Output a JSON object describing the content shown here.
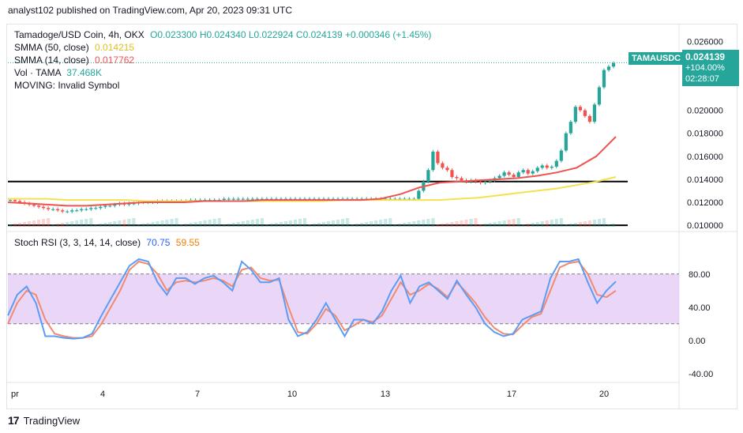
{
  "header": {
    "published": "analyst102 published on TradingView.com, Apr 20, 2023 09:31 UTC"
  },
  "legend": {
    "title": "Tamadoge/USD Coin, 4h, OKX",
    "ohlc": "O0.023300  H0.024340  L0.022924  C0.024139  +0.000346 (+1.45%)",
    "sma50_label": "SMMA (50, close)",
    "sma50_value": "0.014215",
    "sma14_label": "SMMA (14, close)",
    "sma14_value": "0.017762",
    "vol_label": "Vol · TAMA",
    "vol_value": "37.468K",
    "moving": "MOVING: Invalid Symbol",
    "stoch_label": "Stoch RSI (3, 3, 14, 14, close)",
    "stoch_k": "70.75",
    "stoch_d": "59.55"
  },
  "price_tag": {
    "symbol": "TAMAUSDC",
    "price": "0.024139",
    "change": "+104.00%",
    "timer": "02:28:07"
  },
  "footer": {
    "brand": "TradingView"
  },
  "colors": {
    "up": "#26a69a",
    "down": "#ef5350",
    "sma50": "#f5e050",
    "sma14": "#ef5350",
    "stoch_k": "#5b9cf6",
    "stoch_d": "#f08a70",
    "band": "#e1c6f5"
  },
  "chart_data": [
    {
      "type": "candlestick",
      "y_ticks": [
        "0.026000",
        "0.020000",
        "0.018000",
        "0.016000",
        "0.014000",
        "0.012000",
        "0.010000"
      ],
      "ylim": [
        0.0098,
        0.0265
      ],
      "x_ticks": [
        "pr",
        "4",
        "7",
        "10",
        "13",
        "17",
        "20"
      ],
      "support_lines": [
        0.0138,
        0.01
      ],
      "candles_close": [
        0.0122,
        0.0121,
        0.012,
        0.0119,
        0.0118,
        0.0117,
        0.0116,
        0.0115,
        0.0114,
        0.0114,
        0.0113,
        0.0112,
        0.0112,
        0.0113,
        0.0113,
        0.0114,
        0.0114,
        0.0115,
        0.0115,
        0.0116,
        0.0117,
        0.0117,
        0.0118,
        0.0119,
        0.0118,
        0.0119,
        0.0119,
        0.012,
        0.012,
        0.012,
        0.012,
        0.0121,
        0.0121,
        0.0121,
        0.0121,
        0.0121,
        0.0121,
        0.0121,
        0.0122,
        0.0122,
        0.0122,
        0.0122,
        0.0122,
        0.0122,
        0.0122,
        0.0123,
        0.0123,
        0.0123,
        0.0123,
        0.0123,
        0.0123,
        0.0123,
        0.0123,
        0.0123,
        0.0123,
        0.0123,
        0.0123,
        0.0123,
        0.0123,
        0.0123,
        0.0123,
        0.0123,
        0.0123,
        0.0123,
        0.0123,
        0.0123,
        0.0123,
        0.0123,
        0.0123,
        0.0123,
        0.0123,
        0.0123,
        0.0123,
        0.0123,
        0.0123,
        0.0123,
        0.0123,
        0.0123,
        0.0123,
        0.0123,
        0.0123,
        0.0123,
        0.0123,
        0.0123,
        0.0123,
        0.0123,
        0.013,
        0.0138,
        0.0148,
        0.0164,
        0.0154,
        0.015,
        0.0148,
        0.0142,
        0.0141,
        0.0139,
        0.0138,
        0.0139,
        0.0138,
        0.0137,
        0.0138,
        0.0139,
        0.0141,
        0.0143,
        0.0146,
        0.0144,
        0.0142,
        0.0146,
        0.0148,
        0.0145,
        0.0147,
        0.015,
        0.0152,
        0.015,
        0.0151,
        0.0156,
        0.0165,
        0.018,
        0.019,
        0.0203,
        0.02,
        0.0195,
        0.019,
        0.0205,
        0.022,
        0.0235,
        0.0238,
        0.0241
      ],
      "sma50": [
        0.0123,
        0.0123,
        0.0123,
        0.0122,
        0.0122,
        0.0122,
        0.0122,
        0.0121,
        0.0121,
        0.0121,
        0.0121,
        0.0121,
        0.0121,
        0.0121,
        0.0121,
        0.0121,
        0.0121,
        0.0122,
        0.0122,
        0.0122,
        0.0122,
        0.0122,
        0.0122,
        0.0123,
        0.0124,
        0.0126,
        0.0128,
        0.013,
        0.0132,
        0.0135,
        0.0138,
        0.0142
      ],
      "sma14": [
        0.012,
        0.0119,
        0.0118,
        0.0117,
        0.0117,
        0.0118,
        0.0119,
        0.012,
        0.012,
        0.012,
        0.0121,
        0.0121,
        0.0121,
        0.0122,
        0.0122,
        0.0122,
        0.0122,
        0.0122,
        0.0122,
        0.0123,
        0.0127,
        0.0133,
        0.0137,
        0.0138,
        0.0139,
        0.014,
        0.0141,
        0.0143,
        0.0146,
        0.015,
        0.016,
        0.0177
      ]
    },
    {
      "type": "line",
      "name": "Stoch RSI",
      "y_ticks": [
        "80.00",
        "40.00",
        "0.00",
        "-40.00"
      ],
      "ylim": [
        -45,
        115
      ],
      "band": [
        20,
        80
      ],
      "k": [
        30,
        55,
        65,
        45,
        5,
        5,
        3,
        2,
        3,
        8,
        30,
        50,
        70,
        90,
        98,
        95,
        70,
        55,
        75,
        75,
        68,
        75,
        78,
        70,
        60,
        95,
        85,
        70,
        70,
        75,
        25,
        5,
        10,
        25,
        45,
        25,
        5,
        25,
        25,
        20,
        35,
        60,
        78,
        45,
        65,
        70,
        60,
        50,
        72,
        55,
        40,
        20,
        10,
        5,
        8,
        25,
        30,
        35,
        75,
        95,
        95,
        98,
        70,
        45,
        60,
        71
      ],
      "d": [
        20,
        45,
        60,
        55,
        25,
        8,
        5,
        3,
        3,
        5,
        20,
        40,
        60,
        85,
        95,
        92,
        80,
        60,
        70,
        72,
        70,
        72,
        75,
        72,
        65,
        85,
        88,
        75,
        72,
        73,
        40,
        10,
        8,
        20,
        38,
        30,
        12,
        18,
        25,
        22,
        30,
        50,
        70,
        55,
        60,
        68,
        62,
        52,
        70,
        58,
        45,
        28,
        15,
        8,
        7,
        18,
        28,
        32,
        60,
        88,
        93,
        95,
        80,
        55,
        52,
        60
      ]
    }
  ]
}
